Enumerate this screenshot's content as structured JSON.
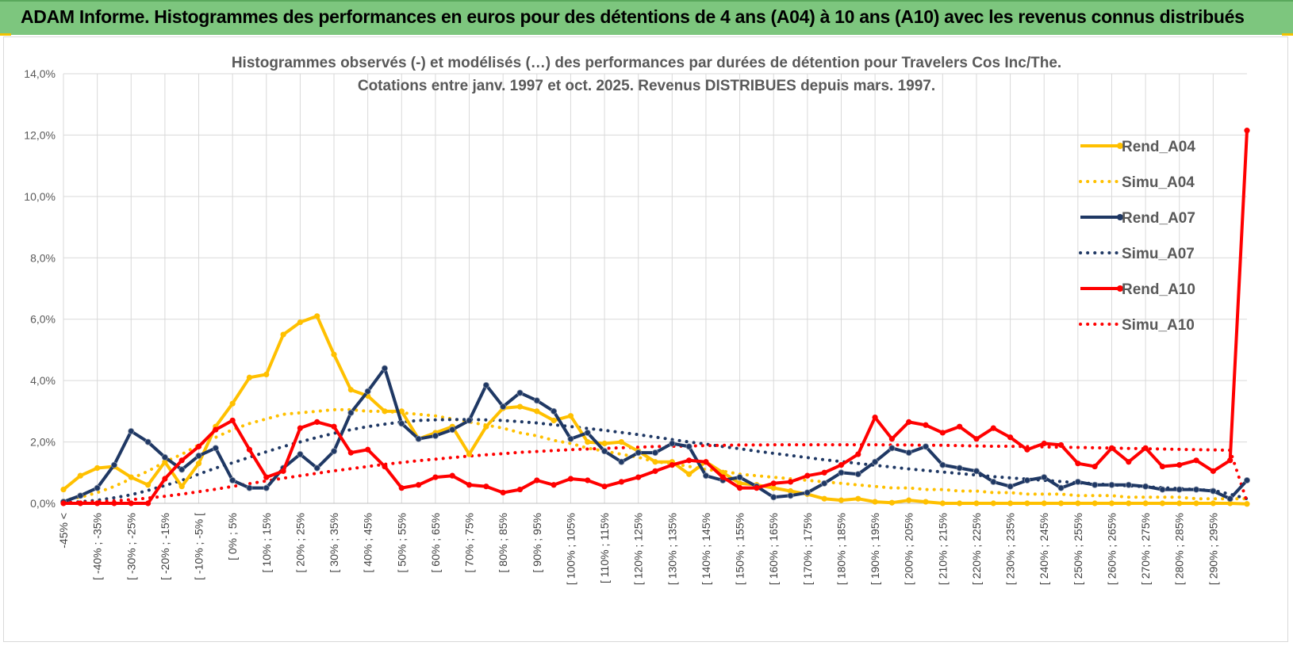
{
  "header": {
    "title": "ADAM Informe. Histogrammes des performances en euros pour des détentions de 4 ans (A04) à 10 ans (A10) avec les revenus connus distribués"
  },
  "chart_data": {
    "type": "line",
    "title": "Histogrammes observés (-) et modélisés (…) des performances par durées de détention pour Travelers Cos Inc/The.",
    "subtitle": "Cotations entre janv. 1997 et oct. 2025.  Revenus DISTRIBUES depuis mars. 1997.",
    "xlabel": "",
    "ylabel": "",
    "ylim": [
      0,
      14
    ],
    "y_ticks": [
      "0,0%",
      "2,0%",
      "4,0%",
      "6,0%",
      "8,0%",
      "10,0%",
      "12,0%",
      "14,0%"
    ],
    "grid": true,
    "legend_position": "top-right",
    "x_tick_labels": [
      "-45% <",
      "[ -40% ; -35%",
      "[ -30% ; -25%",
      "[ -20% ; -15%",
      "[ -10% ; -5% [",
      "[ 0% ; 5%",
      "[ 10% ; 15%",
      "[ 20% ; 25%",
      "[ 30% ; 35%",
      "[ 40% ; 45%",
      "[ 50% ; 55%",
      "[ 60% ; 65%",
      "[ 70% ; 75%",
      "[ 80% ; 85%",
      "[ 90% ; 95%",
      "[ 100% ; 105%",
      "[ 110% ; 115%",
      "[ 120% ; 125%",
      "[ 130% ; 135%",
      "[ 140% ; 145%",
      "[ 150% ; 155%",
      "[ 160% ; 165%",
      "[ 170% ; 175%",
      "[ 180% ; 185%",
      "[ 190% ; 195%",
      "[ 200% ; 205%",
      "[ 210% ; 215%",
      "[ 220% ; 225%",
      "[ 230% ; 235%",
      "[ 240% ; 245%",
      "[ 250% ; 255%",
      "[ 260% ; 265%",
      "[ 270% ; 275%",
      "[ 280% ; 285%",
      "[ 290% ; 295%"
    ],
    "series": [
      {
        "name": "Rend_A04",
        "style": "solid",
        "color": "#ffc000",
        "values": [
          0.45,
          0.9,
          1.15,
          1.2,
          0.85,
          0.6,
          1.35,
          0.55,
          1.3,
          2.5,
          3.25,
          4.1,
          4.2,
          5.5,
          5.9,
          6.1,
          4.85,
          3.7,
          3.5,
          3.0,
          3.0,
          2.1,
          2.3,
          2.5,
          1.6,
          2.5,
          3.1,
          3.15,
          3.0,
          2.7,
          2.85,
          2.0,
          1.95,
          2.0,
          1.7,
          1.35,
          1.35,
          0.95,
          1.35,
          1.0,
          0.65,
          0.6,
          0.5,
          0.4,
          0.3,
          0.15,
          0.1,
          0.15,
          0.05,
          0.02,
          0.1,
          0.05,
          0,
          0,
          0,
          0,
          0,
          0,
          0,
          0,
          0,
          0,
          0,
          0,
          0,
          0,
          0,
          0,
          0,
          0,
          -0.02
        ]
      },
      {
        "name": "Simu_A04",
        "style": "dotted",
        "color": "#ffc000",
        "values": [
          0.1,
          0.2,
          0.35,
          0.55,
          0.8,
          1.05,
          1.35,
          1.6,
          1.9,
          2.15,
          2.4,
          2.6,
          2.75,
          2.9,
          2.95,
          3.0,
          3.05,
          3.05,
          3.0,
          3.0,
          2.95,
          2.9,
          2.85,
          2.75,
          2.65,
          2.55,
          2.45,
          2.3,
          2.2,
          2.05,
          1.95,
          1.8,
          1.7,
          1.6,
          1.5,
          1.35,
          1.3,
          1.2,
          1.1,
          1.05,
          0.95,
          0.9,
          0.85,
          0.8,
          0.75,
          0.7,
          0.65,
          0.6,
          0.55,
          0.5,
          0.5,
          0.45,
          0.45,
          0.4,
          0.4,
          0.35,
          0.35,
          0.3,
          0.3,
          0.3,
          0.25,
          0.25,
          0.25,
          0.2,
          0.2,
          0.2,
          0.2,
          0.15,
          0.15,
          0.15,
          0.15
        ]
      },
      {
        "name": "Rend_A07",
        "style": "solid",
        "color": "#1f3864",
        "values": [
          0.05,
          0.25,
          0.5,
          1.25,
          2.35,
          2.0,
          1.5,
          1.1,
          1.55,
          1.8,
          0.75,
          0.5,
          0.5,
          1.15,
          1.6,
          1.15,
          1.7,
          2.95,
          3.65,
          4.4,
          2.6,
          2.1,
          2.2,
          2.4,
          2.7,
          3.85,
          3.15,
          3.6,
          3.35,
          3.0,
          2.1,
          2.3,
          1.7,
          1.35,
          1.65,
          1.65,
          1.95,
          1.85,
          0.9,
          0.75,
          0.85,
          0.55,
          0.2,
          0.25,
          0.35,
          0.65,
          1.0,
          0.95,
          1.35,
          1.8,
          1.65,
          1.85,
          1.25,
          1.15,
          1.05,
          0.7,
          0.55,
          0.75,
          0.85,
          0.5,
          0.7,
          0.6,
          0.6,
          0.6,
          0.55,
          0.45,
          0.45,
          0.45,
          0.4,
          0.15,
          0.75
        ]
      },
      {
        "name": "Simu_A07",
        "style": "dotted",
        "color": "#1f3864",
        "values": [
          0.02,
          0.05,
          0.1,
          0.18,
          0.28,
          0.42,
          0.58,
          0.75,
          0.95,
          1.15,
          1.32,
          1.5,
          1.68,
          1.85,
          2.0,
          2.15,
          2.28,
          2.4,
          2.5,
          2.58,
          2.65,
          2.7,
          2.72,
          2.73,
          2.73,
          2.72,
          2.7,
          2.66,
          2.62,
          2.56,
          2.5,
          2.44,
          2.38,
          2.31,
          2.24,
          2.16,
          2.08,
          2.0,
          1.93,
          1.85,
          1.78,
          1.7,
          1.63,
          1.56,
          1.49,
          1.42,
          1.36,
          1.3,
          1.24,
          1.18,
          1.12,
          1.07,
          1.02,
          0.97,
          0.92,
          0.87,
          0.83,
          0.79,
          0.75,
          0.71,
          0.67,
          0.64,
          0.6,
          0.57,
          0.54,
          0.51,
          0.48,
          0.45,
          0.42,
          0.3,
          0.15
        ]
      },
      {
        "name": "Rend_A10",
        "style": "solid",
        "color": "#ff0000",
        "values": [
          0,
          0,
          0,
          0,
          0,
          0,
          0.8,
          1.4,
          1.85,
          2.4,
          2.7,
          1.75,
          0.85,
          1.05,
          2.45,
          2.65,
          2.5,
          1.65,
          1.75,
          1.2,
          0.5,
          0.6,
          0.85,
          0.9,
          0.6,
          0.55,
          0.35,
          0.45,
          0.75,
          0.6,
          0.8,
          0.75,
          0.55,
          0.7,
          0.85,
          1.05,
          1.25,
          1.4,
          1.35,
          0.85,
          0.5,
          0.5,
          0.65,
          0.7,
          0.9,
          1.0,
          1.25,
          1.6,
          2.8,
          2.1,
          2.65,
          2.55,
          2.3,
          2.5,
          2.1,
          2.45,
          2.15,
          1.75,
          1.95,
          1.9,
          1.3,
          1.2,
          1.8,
          1.35,
          1.8,
          1.2,
          1.25,
          1.4,
          1.05,
          1.4,
          12.15
        ]
      },
      {
        "name": "Simu_A10",
        "style": "dotted",
        "color": "#ff0000",
        "values": [
          0.02,
          0.03,
          0.05,
          0.08,
          0.12,
          0.17,
          0.23,
          0.3,
          0.38,
          0.46,
          0.55,
          0.64,
          0.73,
          0.82,
          0.9,
          0.98,
          1.06,
          1.13,
          1.2,
          1.27,
          1.33,
          1.39,
          1.44,
          1.49,
          1.54,
          1.58,
          1.62,
          1.66,
          1.69,
          1.72,
          1.75,
          1.77,
          1.79,
          1.81,
          1.83,
          1.85,
          1.86,
          1.87,
          1.88,
          1.89,
          1.9,
          1.9,
          1.91,
          1.91,
          1.91,
          1.91,
          1.91,
          1.91,
          1.91,
          1.9,
          1.9,
          1.89,
          1.89,
          1.88,
          1.87,
          1.86,
          1.86,
          1.85,
          1.84,
          1.83,
          1.82,
          1.81,
          1.8,
          1.79,
          1.78,
          1.77,
          1.76,
          1.75,
          1.74,
          1.73,
          0.05
        ]
      }
    ]
  }
}
